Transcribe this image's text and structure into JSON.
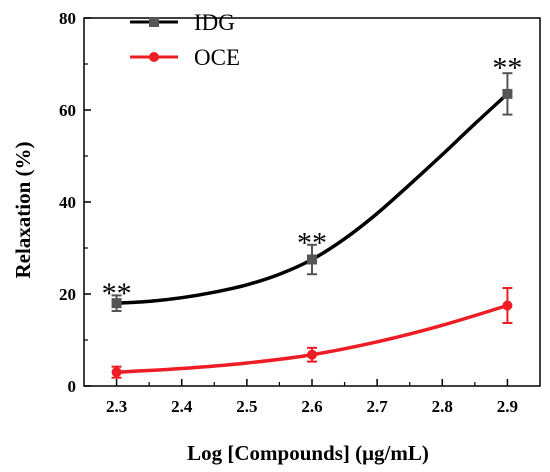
{
  "chart_data": {
    "type": "line",
    "xlabel": "Log [Compounds] (μg/mL)",
    "ylabel": "Relaxation (%)",
    "xlim": [
      2.25,
      2.95
    ],
    "ylim": [
      0,
      80
    ],
    "xticks": [
      2.3,
      2.4,
      2.5,
      2.6,
      2.7,
      2.8,
      2.9
    ],
    "xtick_labels": [
      "2.3",
      "2.4",
      "2.5",
      "2.6",
      "2.7",
      "2.8",
      "2.9"
    ],
    "yticks": [
      0,
      20,
      40,
      60,
      80
    ],
    "ytick_labels": [
      "0",
      "20",
      "40",
      "60",
      "80"
    ],
    "legend_position": "top-left",
    "grid": false,
    "series": [
      {
        "name": "IDG",
        "color": "#000000",
        "marker_color": "#555555",
        "marker": "square",
        "x": [
          2.3,
          2.6,
          2.9
        ],
        "y": [
          18.0,
          27.5,
          63.5
        ],
        "err": [
          1.7,
          3.2,
          4.5
        ],
        "curve": [
          [
            2.3,
            18.0
          ],
          [
            2.35,
            18.4
          ],
          [
            2.4,
            19.2
          ],
          [
            2.45,
            20.4
          ],
          [
            2.5,
            22.0
          ],
          [
            2.55,
            24.3
          ],
          [
            2.6,
            27.5
          ],
          [
            2.65,
            32.0
          ],
          [
            2.7,
            37.5
          ],
          [
            2.75,
            43.8
          ],
          [
            2.8,
            50.3
          ],
          [
            2.85,
            57.0
          ],
          [
            2.9,
            63.5
          ]
        ]
      },
      {
        "name": "OCE",
        "color": "#ee1c25",
        "marker_color": "#ee1c25",
        "marker": "circle",
        "x": [
          2.3,
          2.6,
          2.9
        ],
        "y": [
          3.0,
          6.8,
          17.5
        ],
        "err": [
          1.2,
          1.5,
          3.8
        ],
        "curve": [
          [
            2.3,
            3.0
          ],
          [
            2.4,
            3.8
          ],
          [
            2.5,
            5.0
          ],
          [
            2.6,
            6.8
          ],
          [
            2.7,
            9.6
          ],
          [
            2.8,
            13.2
          ],
          [
            2.9,
            17.5
          ]
        ]
      }
    ],
    "annotations": [
      {
        "text": "**",
        "x": 2.3,
        "y": 21.5
      },
      {
        "text": "**",
        "x": 2.6,
        "y": 32.5
      },
      {
        "text": "**",
        "x": 2.9,
        "y": 70.5
      }
    ]
  }
}
